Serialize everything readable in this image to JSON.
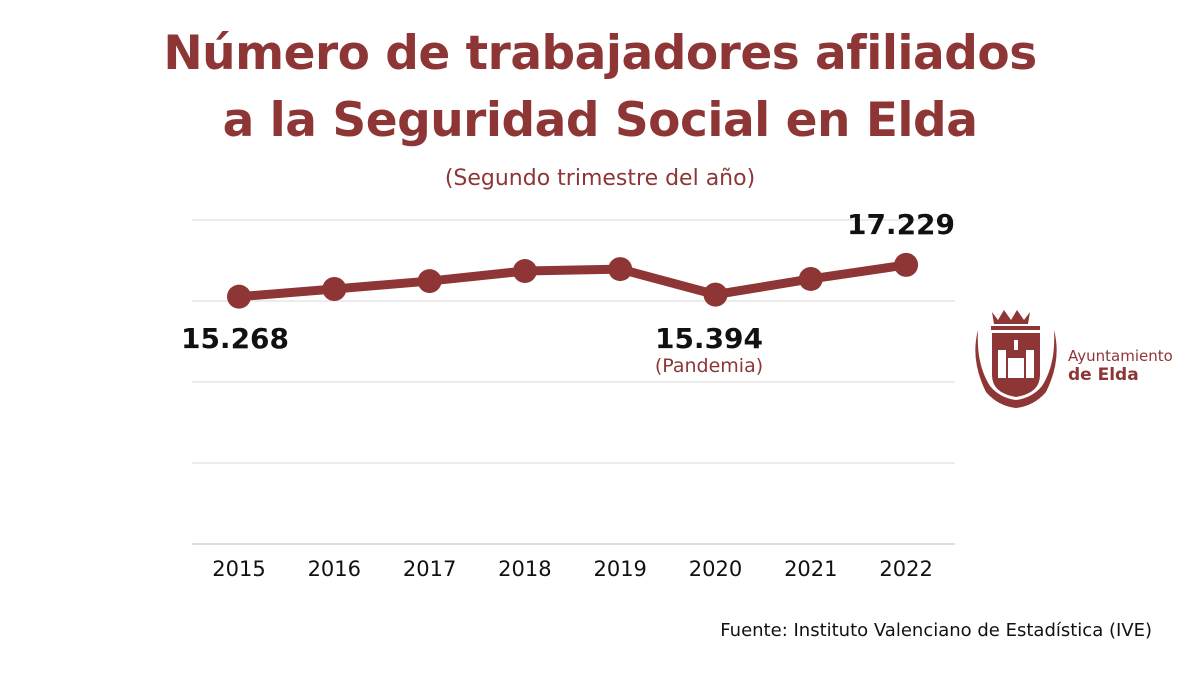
{
  "title_line1": "Número de trabajadores afiliados",
  "title_line2": "a la Seguridad Social en Elda",
  "subtitle": "(Segundo trimestre del año)",
  "source": "Fuente: Instituto Valenciano de Estadística (IVE)",
  "logo": {
    "line1": "Ayuntamiento",
    "line2": "de Elda"
  },
  "colors": {
    "primary": "#8e3635",
    "grid": "#d9d9d9"
  },
  "chart_data": {
    "type": "line",
    "categories": [
      "2015",
      "2016",
      "2017",
      "2018",
      "2019",
      "2020",
      "2021",
      "2022"
    ],
    "values": [
      15268,
      15740,
      16230,
      16850,
      16970,
      15394,
      16360,
      17229
    ],
    "ylim": [
      0,
      20000
    ],
    "grid": true,
    "annotations": [
      {
        "category": "2015",
        "label": "15.268"
      },
      {
        "category": "2020",
        "label": "15.394",
        "note": "(Pandemia)"
      },
      {
        "category": "2022",
        "label": "17.229"
      }
    ]
  }
}
